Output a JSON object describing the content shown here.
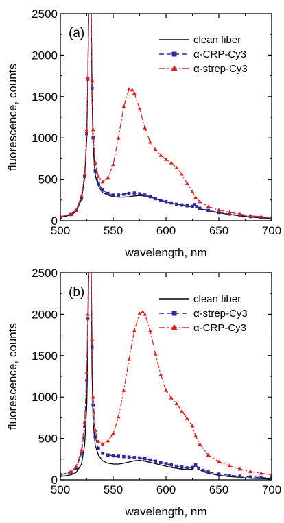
{
  "chart_data": [
    {
      "type": "line",
      "panel_label": "(a)",
      "xlabel": "wavelength, nm",
      "ylabel": "fluorescence, counts",
      "xlim": [
        500,
        700
      ],
      "ylim": [
        0,
        2500
      ],
      "x_ticks": [
        500,
        550,
        600,
        650,
        700
      ],
      "y_ticks": [
        0,
        500,
        1000,
        1500,
        2000,
        2500
      ],
      "legend_position": "top-right",
      "series": [
        {
          "name": "clean fiber",
          "color": "#000000",
          "line": "solid",
          "marker": "none",
          "points": [
            [
              500,
              40
            ],
            [
              510,
              70
            ],
            [
              515,
              110
            ],
            [
              520,
              260
            ],
            [
              523,
              520
            ],
            [
              525,
              1000
            ],
            [
              526,
              1700
            ],
            [
              527,
              2700
            ],
            [
              529,
              2700
            ],
            [
              530,
              1500
            ],
            [
              531,
              900
            ],
            [
              533,
              550
            ],
            [
              536,
              420
            ],
            [
              540,
              340
            ],
            [
              545,
              310
            ],
            [
              550,
              290
            ],
            [
              555,
              285
            ],
            [
              560,
              285
            ],
            [
              565,
              290
            ],
            [
              570,
              300
            ],
            [
              575,
              305
            ],
            [
              580,
              300
            ],
            [
              585,
              290
            ],
            [
              590,
              265
            ],
            [
              595,
              245
            ],
            [
              600,
              230
            ],
            [
              605,
              210
            ],
            [
              610,
              200
            ],
            [
              615,
              190
            ],
            [
              620,
              175
            ],
            [
              625,
              170
            ],
            [
              627,
              185
            ],
            [
              629,
              165
            ],
            [
              632,
              145
            ],
            [
              640,
              120
            ],
            [
              650,
              95
            ],
            [
              660,
              75
            ],
            [
              670,
              60
            ],
            [
              680,
              45
            ],
            [
              690,
              35
            ],
            [
              700,
              25
            ]
          ]
        },
        {
          "name": "α-CRP-Cy3",
          "color": "#2b2b9b",
          "line": "dashed",
          "marker": "square",
          "points": [
            [
              500,
              40
            ],
            [
              510,
              75
            ],
            [
              515,
              120
            ],
            [
              520,
              270
            ],
            [
              523,
              540
            ],
            [
              525,
              1050
            ],
            [
              526,
              1710
            ],
            [
              527,
              2700
            ],
            [
              529,
              2700
            ],
            [
              530,
              1600
            ],
            [
              531,
              1000
            ],
            [
              533,
              600
            ],
            [
              536,
              450
            ],
            [
              540,
              370
            ],
            [
              545,
              330
            ],
            [
              550,
              310
            ],
            [
              555,
              310
            ],
            [
              560,
              320
            ],
            [
              565,
              330
            ],
            [
              570,
              335
            ],
            [
              575,
              325
            ],
            [
              580,
              310
            ],
            [
              585,
              290
            ],
            [
              590,
              265
            ],
            [
              595,
              245
            ],
            [
              600,
              230
            ],
            [
              605,
              215
            ],
            [
              610,
              200
            ],
            [
              615,
              190
            ],
            [
              620,
              180
            ],
            [
              625,
              175
            ],
            [
              627,
              195
            ],
            [
              629,
              170
            ],
            [
              632,
              150
            ],
            [
              640,
              125
            ],
            [
              650,
              100
            ],
            [
              660,
              80
            ],
            [
              670,
              65
            ],
            [
              680,
              50
            ],
            [
              690,
              40
            ],
            [
              700,
              30
            ]
          ]
        },
        {
          "name": "α-strep-Cy3",
          "color": "#e02020",
          "line": "dashdot",
          "marker": "triangle",
          "points": [
            [
              500,
              50
            ],
            [
              510,
              80
            ],
            [
              515,
              130
            ],
            [
              520,
              300
            ],
            [
              523,
              560
            ],
            [
              525,
              1100
            ],
            [
              526,
              1720
            ],
            [
              527,
              2700
            ],
            [
              529,
              2700
            ],
            [
              530,
              1700
            ],
            [
              531,
              1100
            ],
            [
              533,
              700
            ],
            [
              536,
              530
            ],
            [
              540,
              470
            ],
            [
              545,
              520
            ],
            [
              550,
              680
            ],
            [
              555,
              1000
            ],
            [
              560,
              1380
            ],
            [
              565,
              1590
            ],
            [
              568,
              1580
            ],
            [
              570,
              1540
            ],
            [
              575,
              1350
            ],
            [
              580,
              1120
            ],
            [
              585,
              950
            ],
            [
              590,
              860
            ],
            [
              595,
              790
            ],
            [
              600,
              740
            ],
            [
              605,
              700
            ],
            [
              610,
              640
            ],
            [
              615,
              560
            ],
            [
              620,
              450
            ],
            [
              625,
              350
            ],
            [
              628,
              280
            ],
            [
              632,
              230
            ],
            [
              640,
              170
            ],
            [
              650,
              130
            ],
            [
              660,
              100
            ],
            [
              670,
              80
            ],
            [
              680,
              60
            ],
            [
              690,
              50
            ],
            [
              700,
              40
            ]
          ]
        }
      ]
    },
    {
      "type": "line",
      "panel_label": "(b)",
      "xlabel": "wavelength, nm",
      "ylabel": "fluorescence, counts",
      "xlim": [
        500,
        700
      ],
      "ylim": [
        0,
        2500
      ],
      "x_ticks": [
        500,
        550,
        600,
        650,
        700
      ],
      "y_ticks": [
        0,
        500,
        1000,
        1500,
        2000,
        2500
      ],
      "legend_position": "top-right",
      "series": [
        {
          "name": "clean fiber",
          "color": "#000000",
          "line": "solid",
          "marker": "none",
          "points": [
            [
              500,
              40
            ],
            [
              510,
              60
            ],
            [
              515,
              90
            ],
            [
              520,
              190
            ],
            [
              523,
              420
            ],
            [
              525,
              900
            ],
            [
              526,
              1600
            ],
            [
              527,
              2700
            ],
            [
              529,
              2700
            ],
            [
              530,
              1300
            ],
            [
              531,
              700
            ],
            [
              533,
              420
            ],
            [
              536,
              300
            ],
            [
              540,
              230
            ],
            [
              545,
              200
            ],
            [
              550,
              190
            ],
            [
              555,
              190
            ],
            [
              560,
              200
            ],
            [
              565,
              215
            ],
            [
              570,
              230
            ],
            [
              575,
              235
            ],
            [
              580,
              225
            ],
            [
              585,
              210
            ],
            [
              590,
              195
            ],
            [
              595,
              180
            ],
            [
              600,
              165
            ],
            [
              605,
              150
            ],
            [
              610,
              140
            ],
            [
              615,
              130
            ],
            [
              620,
              125
            ],
            [
              625,
              130
            ],
            [
              628,
              175
            ],
            [
              631,
              130
            ],
            [
              635,
              100
            ],
            [
              640,
              80
            ],
            [
              650,
              55
            ],
            [
              660,
              40
            ],
            [
              670,
              30
            ],
            [
              680,
              20
            ],
            [
              690,
              15
            ],
            [
              700,
              10
            ]
          ]
        },
        {
          "name": "α-strep-Cy3",
          "color": "#2b2b9b",
          "line": "dashed",
          "marker": "square",
          "points": [
            [
              500,
              60
            ],
            [
              510,
              90
            ],
            [
              515,
              140
            ],
            [
              520,
              320
            ],
            [
              523,
              640
            ],
            [
              525,
              1200
            ],
            [
              526,
              1950
            ],
            [
              527,
              2700
            ],
            [
              529,
              2700
            ],
            [
              530,
              1600
            ],
            [
              531,
              900
            ],
            [
              533,
              520
            ],
            [
              536,
              380
            ],
            [
              540,
              320
            ],
            [
              545,
              300
            ],
            [
              550,
              290
            ],
            [
              555,
              285
            ],
            [
              560,
              280
            ],
            [
              565,
              275
            ],
            [
              570,
              270
            ],
            [
              575,
              265
            ],
            [
              580,
              255
            ],
            [
              585,
              240
            ],
            [
              590,
              225
            ],
            [
              595,
              210
            ],
            [
              600,
              195
            ],
            [
              605,
              180
            ],
            [
              610,
              165
            ],
            [
              615,
              155
            ],
            [
              620,
              145
            ],
            [
              625,
              150
            ],
            [
              628,
              180
            ],
            [
              631,
              140
            ],
            [
              635,
              115
            ],
            [
              640,
              95
            ],
            [
              650,
              70
            ],
            [
              660,
              55
            ],
            [
              670,
              45
            ],
            [
              680,
              35
            ],
            [
              690,
              28
            ],
            [
              700,
              20
            ]
          ]
        },
        {
          "name": "α-CRP-Cy3",
          "color": "#e02020",
          "line": "dashdot",
          "marker": "triangle",
          "points": [
            [
              500,
              60
            ],
            [
              510,
              100
            ],
            [
              515,
              160
            ],
            [
              520,
              360
            ],
            [
              523,
              700
            ],
            [
              525,
              1300
            ],
            [
              526,
              2000
            ],
            [
              527,
              2700
            ],
            [
              529,
              2700
            ],
            [
              530,
              1700
            ],
            [
              531,
              1000
            ],
            [
              533,
              600
            ],
            [
              536,
              460
            ],
            [
              540,
              430
            ],
            [
              545,
              470
            ],
            [
              550,
              560
            ],
            [
              555,
              760
            ],
            [
              560,
              1080
            ],
            [
              565,
              1450
            ],
            [
              570,
              1800
            ],
            [
              575,
              2010
            ],
            [
              578,
              2030
            ],
            [
              580,
              2000
            ],
            [
              585,
              1800
            ],
            [
              590,
              1520
            ],
            [
              595,
              1270
            ],
            [
              600,
              1080
            ],
            [
              605,
              990
            ],
            [
              610,
              920
            ],
            [
              615,
              830
            ],
            [
              620,
              740
            ],
            [
              625,
              650
            ],
            [
              628,
              530
            ],
            [
              632,
              430
            ],
            [
              640,
              300
            ],
            [
              650,
              220
            ],
            [
              660,
              170
            ],
            [
              670,
              130
            ],
            [
              680,
              100
            ],
            [
              690,
              80
            ],
            [
              700,
              60
            ]
          ]
        }
      ]
    }
  ]
}
